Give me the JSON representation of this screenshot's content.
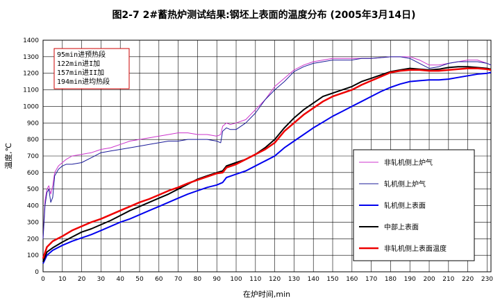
{
  "chart_data": {
    "type": "line",
    "title": "图2-7   2#蓄热炉测试结果:钢坯上表面的温度分布  (2005年3月14日)",
    "xlabel": "在炉时间,min",
    "ylabel": "温度,℃",
    "xlim": [
      0,
      232
    ],
    "ylim": [
      0,
      1400
    ],
    "xticks": [
      0,
      10,
      20,
      30,
      40,
      50,
      60,
      70,
      80,
      90,
      100,
      110,
      120,
      130,
      140,
      150,
      160,
      170,
      180,
      190,
      200,
      210,
      220,
      230
    ],
    "yticks": [
      0,
      100,
      200,
      300,
      400,
      500,
      600,
      700,
      800,
      900,
      1000,
      1100,
      1200,
      1300,
      1400
    ],
    "grid": true,
    "legend_position": "lower-right",
    "notes": [
      "95min进预热段",
      "122min进I加",
      "157min进II加",
      "194min进均热段"
    ],
    "series": [
      {
        "name": "非轧机侧上炉气",
        "color": "#cc33cc",
        "width": 1,
        "x": [
          0,
          1,
          2,
          3,
          4,
          5,
          6,
          8,
          10,
          12,
          15,
          20,
          25,
          30,
          35,
          40,
          45,
          50,
          55,
          60,
          65,
          70,
          75,
          80,
          85,
          90,
          92,
          93,
          95,
          97,
          100,
          105,
          110,
          115,
          120,
          125,
          130,
          135,
          140,
          145,
          150,
          155,
          160,
          165,
          170,
          175,
          180,
          185,
          190,
          195,
          200,
          205,
          210,
          215,
          220,
          225,
          230,
          232
        ],
        "y": [
          200,
          430,
          500,
          520,
          470,
          520,
          600,
          640,
          660,
          680,
          700,
          710,
          720,
          740,
          750,
          770,
          790,
          800,
          810,
          820,
          830,
          840,
          840,
          830,
          830,
          820,
          830,
          880,
          900,
          890,
          900,
          920,
          980,
          1040,
          1120,
          1170,
          1220,
          1250,
          1270,
          1280,
          1290,
          1290,
          1290,
          1290,
          1290,
          1295,
          1300,
          1300,
          1300,
          1280,
          1250,
          1250,
          1260,
          1270,
          1280,
          1280,
          1260,
          1250
        ]
      },
      {
        "name": "轧机侧上炉气",
        "color": "#1a1a99",
        "width": 1,
        "x": [
          0,
          1,
          2,
          3,
          4,
          5,
          6,
          8,
          10,
          12,
          15,
          20,
          25,
          30,
          35,
          40,
          45,
          50,
          55,
          60,
          65,
          70,
          75,
          80,
          85,
          90,
          92,
          93,
          95,
          97,
          100,
          105,
          110,
          115,
          120,
          125,
          130,
          135,
          140,
          145,
          150,
          155,
          160,
          165,
          170,
          175,
          180,
          185,
          190,
          195,
          200,
          205,
          210,
          215,
          220,
          225,
          230,
          232
        ],
        "y": [
          200,
          400,
          480,
          500,
          420,
          450,
          580,
          620,
          640,
          650,
          650,
          660,
          690,
          720,
          730,
          740,
          750,
          760,
          770,
          780,
          790,
          790,
          800,
          800,
          800,
          790,
          780,
          850,
          870,
          860,
          860,
          900,
          960,
          1040,
          1100,
          1150,
          1210,
          1240,
          1260,
          1270,
          1280,
          1280,
          1280,
          1290,
          1290,
          1295,
          1300,
          1300,
          1290,
          1260,
          1230,
          1240,
          1260,
          1270,
          1270,
          1270,
          1260,
          1250
        ]
      },
      {
        "name": "轧机侧上表面",
        "color": "#0000ee",
        "width": 2,
        "x": [
          0,
          2,
          5,
          10,
          15,
          20,
          25,
          30,
          35,
          40,
          45,
          50,
          55,
          60,
          65,
          70,
          75,
          80,
          85,
          90,
          93,
          95,
          100,
          105,
          110,
          115,
          120,
          125,
          130,
          135,
          140,
          145,
          150,
          155,
          160,
          165,
          170,
          175,
          180,
          185,
          190,
          195,
          200,
          205,
          210,
          215,
          220,
          225,
          230,
          232
        ],
        "y": [
          50,
          100,
          130,
          160,
          185,
          205,
          225,
          250,
          275,
          300,
          320,
          345,
          370,
          395,
          420,
          445,
          470,
          490,
          510,
          525,
          540,
          570,
          590,
          610,
          640,
          670,
          700,
          750,
          790,
          830,
          870,
          905,
          940,
          970,
          1000,
          1030,
          1060,
          1090,
          1115,
          1135,
          1150,
          1155,
          1160,
          1160,
          1165,
          1175,
          1185,
          1195,
          1200,
          1205
        ]
      },
      {
        "name": "中部上表面",
        "color": "#000000",
        "width": 2,
        "x": [
          0,
          2,
          5,
          10,
          15,
          20,
          25,
          30,
          35,
          40,
          45,
          50,
          55,
          60,
          65,
          70,
          75,
          80,
          85,
          90,
          93,
          95,
          100,
          105,
          110,
          115,
          120,
          125,
          130,
          135,
          140,
          145,
          150,
          155,
          160,
          165,
          170,
          175,
          180,
          185,
          190,
          195,
          200,
          205,
          210,
          215,
          220,
          225,
          230,
          232
        ],
        "y": [
          60,
          120,
          145,
          180,
          210,
          240,
          260,
          285,
          310,
          340,
          370,
          395,
          420,
          445,
          470,
          500,
          530,
          560,
          580,
          600,
          610,
          640,
          660,
          680,
          710,
          750,
          800,
          870,
          930,
          980,
          1020,
          1060,
          1080,
          1100,
          1120,
          1150,
          1170,
          1190,
          1210,
          1220,
          1230,
          1225,
          1220,
          1225,
          1235,
          1240,
          1240,
          1235,
          1230,
          1225
        ]
      },
      {
        "name": "非轧机侧上表面温度",
        "color": "#ee0000",
        "width": 2.5,
        "x": [
          0,
          2,
          5,
          10,
          15,
          20,
          25,
          30,
          35,
          40,
          45,
          50,
          55,
          60,
          65,
          70,
          75,
          80,
          85,
          90,
          93,
          95,
          100,
          105,
          110,
          115,
          120,
          125,
          130,
          135,
          140,
          145,
          150,
          155,
          160,
          165,
          170,
          175,
          180,
          185,
          190,
          195,
          200,
          205,
          210,
          215,
          220,
          225,
          230,
          232
        ],
        "y": [
          80,
          150,
          185,
          215,
          250,
          275,
          300,
          320,
          345,
          370,
          395,
          420,
          440,
          465,
          490,
          510,
          535,
          555,
          575,
          595,
          600,
          630,
          650,
          680,
          710,
          740,
          780,
          850,
          900,
          950,
          990,
          1030,
          1060,
          1080,
          1100,
          1130,
          1155,
          1180,
          1205,
          1215,
          1220,
          1220,
          1215,
          1215,
          1220,
          1225,
          1230,
          1230,
          1225,
          1220
        ]
      }
    ]
  }
}
